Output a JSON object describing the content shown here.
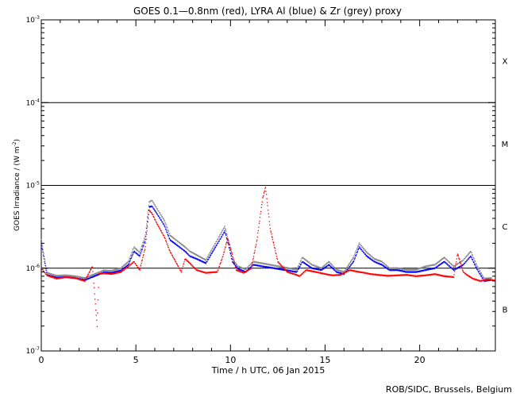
{
  "chart_data": {
    "type": "scatter",
    "title": "GOES 0.1—0.8nm (red), LYRA Al (blue) & Zr (grey) proxy",
    "xlabel": "Time / h UTC, 06 Jan 2015",
    "ylabel": "GOES Irradiance / (W m",
    "ylabel_sup": "-2",
    "ylabel_end": ")",
    "credit": "ROB/SIDC, Brussels, Belgium",
    "xlim": [
      0,
      24
    ],
    "x_ticks": [
      0,
      5,
      10,
      15,
      20
    ],
    "y_scale": "log",
    "ylim": [
      1e-07,
      0.001
    ],
    "y_ticks": [
      {
        "value": 1e-07,
        "base": "10",
        "exp": "-7"
      },
      {
        "value": 1e-06,
        "base": "10",
        "exp": "-6"
      },
      {
        "value": 1e-05,
        "base": "10",
        "exp": "-5"
      },
      {
        "value": 0.0001,
        "base": "10",
        "exp": "-4"
      },
      {
        "value": 0.001,
        "base": "10",
        "exp": "-3"
      }
    ],
    "flare_classes": [
      {
        "label": "B",
        "y": 3.2e-07
      },
      {
        "label": "C",
        "y": 3.2e-06
      },
      {
        "label": "M",
        "y": 3.2e-05
      },
      {
        "label": "X",
        "y": 0.00032
      }
    ],
    "threshold_lines": [
      1e-06,
      1e-05,
      0.0001
    ],
    "series": [
      {
        "name": "GOES 0.1—0.8nm",
        "color": "#ff0000",
        "x": [
          0,
          0.3,
          0.8,
          1.3,
          1.8,
          2.3,
          2.7,
          2.95,
          3.05,
          3.3,
          3.7,
          4.2,
          4.6,
          4.9,
          5.2,
          5.5,
          5.7,
          5.85,
          6.1,
          6.5,
          6.8,
          7.1,
          7.4,
          7.6,
          7.85,
          8.2,
          8.7,
          9.3,
          9.6,
          9.85,
          10.05,
          10.3,
          10.7,
          11.1,
          11.4,
          11.7,
          11.85,
          12.1,
          12.5,
          13.0,
          13.5,
          13.65,
          14.0,
          14.5,
          15.0,
          15.4,
          15.8,
          16.3,
          16.8,
          17.2,
          17.4,
          17.8,
          18.3,
          18.8,
          19.3,
          19.8,
          20.3,
          20.8,
          21.3,
          21.8,
          22.0,
          22.3,
          22.5,
          22.8,
          23.2,
          23.6,
          24.0
        ],
        "y": [
          1e-06,
          8.2e-07,
          7.5e-07,
          7.8e-07,
          7.6e-07,
          7e-07,
          1.05e-06,
          2e-07,
          8.5e-07,
          8.7e-07,
          8.5e-07,
          9e-07,
          1.05e-06,
          1.2e-06,
          9.5e-07,
          1.8e-06,
          5e-06,
          4.6e-06,
          3.5e-06,
          2.4e-06,
          1.6e-06,
          1.2e-06,
          9e-07,
          1.3e-06,
          1.15e-06,
          9.5e-07,
          8.8e-07,
          9e-07,
          1.4e-06,
          2.3e-06,
          1.6e-06,
          9.5e-07,
          8.8e-07,
          1e-06,
          2.2e-06,
          7e-06,
          9.5e-06,
          3e-06,
          1.2e-06,
          9e-07,
          8.3e-07,
          8e-07,
          9.5e-07,
          9e-07,
          8.5e-07,
          8.2e-07,
          8.3e-07,
          9.5e-07,
          9e-07,
          8.7e-07,
          8.5e-07,
          8.3e-07,
          8.1e-07,
          8.2e-07,
          8.3e-07,
          8e-07,
          8.2e-07,
          8.5e-07,
          8e-07,
          7.8e-07,
          1.5e-06,
          9e-07,
          8.3e-07,
          7.5e-07,
          7e-07,
          7.3e-07,
          7.1e-07
        ]
      },
      {
        "name": "LYRA Al",
        "color": "#0000ff",
        "x": [
          0,
          0.3,
          0.8,
          1.3,
          1.8,
          2.3,
          3.3,
          3.7,
          4.2,
          4.6,
          4.9,
          5.2,
          5.5,
          5.7,
          5.85,
          6.1,
          6.5,
          6.8,
          7.6,
          7.85,
          8.2,
          8.7,
          9.7,
          9.9,
          10.1,
          10.4,
          10.8,
          11.2,
          13.5,
          13.8,
          14.3,
          14.8,
          15.2,
          15.6,
          16.0,
          16.5,
          16.8,
          17.2,
          17.6,
          18.0,
          18.4,
          18.8,
          19.3,
          19.8,
          20.3,
          20.8,
          21.3,
          21.8,
          22.3,
          22.7,
          23.0,
          23.4,
          23.8
        ],
        "y": [
          2e-06,
          8.3e-07,
          7.7e-07,
          7.8e-07,
          7.6e-07,
          7.2e-07,
          8.9e-07,
          8.8e-07,
          9.4e-07,
          1.1e-06,
          1.6e-06,
          1.4e-06,
          2.2e-06,
          5.5e-06,
          5.6e-06,
          4.6e-06,
          3.3e-06,
          2.2e-06,
          1.6e-06,
          1.4e-06,
          1.3e-06,
          1.15e-06,
          2.8e-06,
          1.9e-06,
          1.2e-06,
          9.8e-07,
          9e-07,
          1.1e-06,
          9e-07,
          1.2e-06,
          1e-06,
          9.5e-07,
          1.1e-06,
          9e-07,
          8.5e-07,
          1.2e-06,
          1.8e-06,
          1.4e-06,
          1.2e-06,
          1.1e-06,
          9.5e-07,
          9.5e-07,
          9e-07,
          9e-07,
          9.5e-07,
          1e-06,
          1.2e-06,
          9.5e-07,
          1.1e-06,
          1.4e-06,
          1e-06,
          7e-07,
          7.2e-07
        ]
      },
      {
        "name": "Zr proxy",
        "color": "#888888",
        "x": [
          0,
          0.3,
          0.8,
          1.3,
          1.8,
          2.3,
          3.3,
          3.7,
          4.2,
          4.6,
          4.9,
          5.2,
          5.5,
          5.7,
          5.85,
          6.1,
          6.5,
          6.8,
          7.6,
          7.85,
          8.2,
          8.7,
          9.7,
          9.9,
          10.1,
          10.4,
          10.8,
          11.2,
          13.5,
          13.8,
          14.3,
          14.8,
          15.2,
          15.6,
          16.0,
          16.5,
          16.8,
          17.2,
          17.6,
          18.0,
          18.4,
          18.8,
          19.3,
          19.8,
          20.3,
          20.8,
          21.3,
          21.8,
          22.3,
          22.7,
          23.0,
          23.4,
          23.8
        ],
        "y": [
          2.2e-06,
          8.8e-07,
          8.1e-07,
          8.2e-07,
          8e-07,
          7.6e-07,
          9.4e-07,
          9.3e-07,
          1e-06,
          1.2e-06,
          1.8e-06,
          1.55e-06,
          2.5e-06,
          6.3e-06,
          6.6e-06,
          5.3e-06,
          3.8e-06,
          2.5e-06,
          1.8e-06,
          1.6e-06,
          1.45e-06,
          1.25e-06,
          3.2e-06,
          2.1e-06,
          1.3e-06,
          1.05e-06,
          9.7e-07,
          1.2e-06,
          9.6e-07,
          1.35e-06,
          1.1e-06,
          1e-06,
          1.2e-06,
          9.6e-07,
          9e-07,
          1.35e-06,
          2e-06,
          1.55e-06,
          1.3e-06,
          1.2e-06,
          1e-06,
          1e-06,
          9.6e-07,
          9.6e-07,
          1.05e-06,
          1.1e-06,
          1.35e-06,
          1.05e-06,
          1.25e-06,
          1.6e-06,
          1.1e-06,
          7.5e-07,
          7.6e-07
        ]
      }
    ]
  }
}
